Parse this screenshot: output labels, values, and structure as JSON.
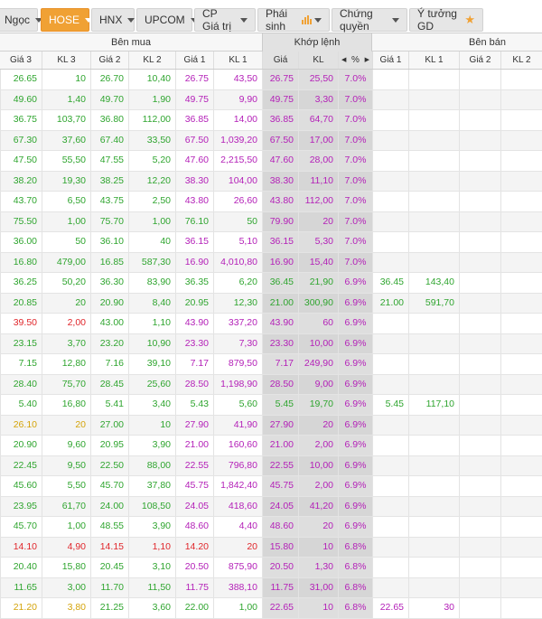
{
  "tabs": [
    {
      "label": "Ngọc",
      "active": false,
      "icon": "chevron-down-icon"
    },
    {
      "label": "HOSE",
      "active": true,
      "icon": "chevron-down-icon"
    },
    {
      "label": "HNX",
      "active": false,
      "icon": "chevron-down-icon"
    },
    {
      "label": "UPCOM",
      "active": false,
      "icon": "chevron-down-icon"
    },
    {
      "label": "CP Giá trị",
      "active": false,
      "icon": "chevron-down-icon"
    },
    {
      "label": "Phái sinh",
      "active": false,
      "icon": "bar-chart-icon"
    },
    {
      "label": "Chứng quyền",
      "active": false,
      "icon": "chevron-down-icon"
    },
    {
      "label": "Ý tưởng GD",
      "active": false,
      "icon": "star-icon"
    }
  ],
  "groups": {
    "ben_mua": "Bên mua",
    "khop_lenh": "Khớp lệnh",
    "ben_ban": "Bên bán"
  },
  "columns": [
    "Giá 3",
    "KL 3",
    "Giá 2",
    "KL 2",
    "Giá 1",
    "KL 1",
    "Giá",
    "KL",
    "%",
    "Giá 1",
    "KL 1",
    "Giá 2",
    "KL 2"
  ],
  "colors": {
    "green": "#2fa52f",
    "purple": "#b421b8",
    "red": "#e0262b",
    "yellow": "#d4a40a",
    "accent": "#f0a134"
  },
  "rows": [
    {
      "g3": "26.65",
      "kl3": "10",
      "g2": "26.70",
      "kl2": "10,40",
      "g1": "26.75",
      "kl1": "43,50",
      "gia": "26.75",
      "kl": "25,50",
      "pct": "7.0%",
      "s_g1": "",
      "s_kl1": "",
      "s_g2": "",
      "s_kl2": "",
      "c3": "green",
      "c2": "green",
      "c1": "purple",
      "cg": "purple"
    },
    {
      "g3": "49.60",
      "kl3": "1,40",
      "g2": "49.70",
      "kl2": "1,90",
      "g1": "49.75",
      "kl1": "9,90",
      "gia": "49.75",
      "kl": "3,30",
      "pct": "7.0%",
      "s_g1": "",
      "s_kl1": "",
      "s_g2": "",
      "s_kl2": "",
      "c3": "green",
      "c2": "green",
      "c1": "purple",
      "cg": "purple"
    },
    {
      "g3": "36.75",
      "kl3": "103,70",
      "g2": "36.80",
      "kl2": "112,00",
      "g1": "36.85",
      "kl1": "14,00",
      "gia": "36.85",
      "kl": "64,70",
      "pct": "7.0%",
      "s_g1": "",
      "s_kl1": "",
      "s_g2": "",
      "s_kl2": "",
      "c3": "green",
      "c2": "green",
      "c1": "purple",
      "cg": "purple"
    },
    {
      "g3": "67.30",
      "kl3": "37,60",
      "g2": "67.40",
      "kl2": "33,50",
      "g1": "67.50",
      "kl1": "1,039,20",
      "gia": "67.50",
      "kl": "17,00",
      "pct": "7.0%",
      "s_g1": "",
      "s_kl1": "",
      "s_g2": "",
      "s_kl2": "",
      "c3": "green",
      "c2": "green",
      "c1": "purple",
      "cg": "purple"
    },
    {
      "g3": "47.50",
      "kl3": "55,50",
      "g2": "47.55",
      "kl2": "5,20",
      "g1": "47.60",
      "kl1": "2,215,50",
      "gia": "47.60",
      "kl": "28,00",
      "pct": "7.0%",
      "s_g1": "",
      "s_kl1": "",
      "s_g2": "",
      "s_kl2": "",
      "c3": "green",
      "c2": "green",
      "c1": "purple",
      "cg": "purple"
    },
    {
      "g3": "38.20",
      "kl3": "19,30",
      "g2": "38.25",
      "kl2": "12,20",
      "g1": "38.30",
      "kl1": "104,00",
      "gia": "38.30",
      "kl": "11,10",
      "pct": "7.0%",
      "s_g1": "",
      "s_kl1": "",
      "s_g2": "",
      "s_kl2": "",
      "c3": "green",
      "c2": "green",
      "c1": "purple",
      "cg": "purple"
    },
    {
      "g3": "43.70",
      "kl3": "6,50",
      "g2": "43.75",
      "kl2": "2,50",
      "g1": "43.80",
      "kl1": "26,60",
      "gia": "43.80",
      "kl": "112,00",
      "pct": "7.0%",
      "s_g1": "",
      "s_kl1": "",
      "s_g2": "",
      "s_kl2": "",
      "c3": "green",
      "c2": "green",
      "c1": "purple",
      "cg": "purple"
    },
    {
      "g3": "75.50",
      "kl3": "1,00",
      "g2": "75.70",
      "kl2": "1,00",
      "g1": "76.10",
      "kl1": "50",
      "gia": "79.90",
      "kl": "20",
      "pct": "7.0%",
      "s_g1": "",
      "s_kl1": "",
      "s_g2": "",
      "s_kl2": "",
      "c3": "green",
      "c2": "green",
      "c1": "green",
      "cg": "purple"
    },
    {
      "g3": "36.00",
      "kl3": "50",
      "g2": "36.10",
      "kl2": "40",
      "g1": "36.15",
      "kl1": "5,10",
      "gia": "36.15",
      "kl": "5,30",
      "pct": "7.0%",
      "s_g1": "",
      "s_kl1": "",
      "s_g2": "",
      "s_kl2": "",
      "c3": "green",
      "c2": "green",
      "c1": "purple",
      "cg": "purple"
    },
    {
      "g3": "16.80",
      "kl3": "479,00",
      "g2": "16.85",
      "kl2": "587,30",
      "g1": "16.90",
      "kl1": "4,010,80",
      "gia": "16.90",
      "kl": "15,40",
      "pct": "7.0%",
      "s_g1": "",
      "s_kl1": "",
      "s_g2": "",
      "s_kl2": "",
      "c3": "green",
      "c2": "green",
      "c1": "purple",
      "cg": "purple"
    },
    {
      "g3": "36.25",
      "kl3": "50,20",
      "g2": "36.30",
      "kl2": "83,90",
      "g1": "36.35",
      "kl1": "6,20",
      "gia": "36.45",
      "kl": "21,90",
      "pct": "6.9%",
      "s_g1": "36.45",
      "s_kl1": "143,40",
      "s_g2": "",
      "s_kl2": "",
      "c3": "green",
      "c2": "green",
      "c1": "green",
      "cg": "green"
    },
    {
      "g3": "20.85",
      "kl3": "20",
      "g2": "20.90",
      "kl2": "8,40",
      "g1": "20.95",
      "kl1": "12,30",
      "gia": "21.00",
      "kl": "300,90",
      "pct": "6.9%",
      "s_g1": "21.00",
      "s_kl1": "591,70",
      "s_g2": "",
      "s_kl2": "",
      "c3": "green",
      "c2": "green",
      "c1": "green",
      "cg": "green"
    },
    {
      "g3": "39.50",
      "kl3": "2,00",
      "g2": "43.00",
      "kl2": "1,10",
      "g1": "43.90",
      "kl1": "337,20",
      "gia": "43.90",
      "kl": "60",
      "pct": "6.9%",
      "s_g1": "",
      "s_kl1": "",
      "s_g2": "",
      "s_kl2": "",
      "c3": "red",
      "c2": "green",
      "c1": "purple",
      "cg": "purple"
    },
    {
      "g3": "23.15",
      "kl3": "3,70",
      "g2": "23.20",
      "kl2": "10,90",
      "g1": "23.30",
      "kl1": "7,30",
      "gia": "23.30",
      "kl": "10,00",
      "pct": "6.9%",
      "s_g1": "",
      "s_kl1": "",
      "s_g2": "",
      "s_kl2": "",
      "c3": "green",
      "c2": "green",
      "c1": "purple",
      "cg": "purple"
    },
    {
      "g3": "7.15",
      "kl3": "12,80",
      "g2": "7.16",
      "kl2": "39,10",
      "g1": "7.17",
      "kl1": "879,50",
      "gia": "7.17",
      "kl": "249,90",
      "pct": "6.9%",
      "s_g1": "",
      "s_kl1": "",
      "s_g2": "",
      "s_kl2": "",
      "c3": "green",
      "c2": "green",
      "c1": "purple",
      "cg": "purple"
    },
    {
      "g3": "28.40",
      "kl3": "75,70",
      "g2": "28.45",
      "kl2": "25,60",
      "g1": "28.50",
      "kl1": "1,198,90",
      "gia": "28.50",
      "kl": "9,00",
      "pct": "6.9%",
      "s_g1": "",
      "s_kl1": "",
      "s_g2": "",
      "s_kl2": "",
      "c3": "green",
      "c2": "green",
      "c1": "purple",
      "cg": "purple"
    },
    {
      "g3": "5.40",
      "kl3": "16,80",
      "g2": "5.41",
      "kl2": "3,40",
      "g1": "5.43",
      "kl1": "5,60",
      "gia": "5.45",
      "kl": "19,70",
      "pct": "6.9%",
      "s_g1": "5.45",
      "s_kl1": "117,10",
      "s_g2": "",
      "s_kl2": "",
      "c3": "green",
      "c2": "green",
      "c1": "green",
      "cg": "green"
    },
    {
      "g3": "26.10",
      "kl3": "20",
      "g2": "27.00",
      "kl2": "10",
      "g1": "27.90",
      "kl1": "41,90",
      "gia": "27.90",
      "kl": "20",
      "pct": "6.9%",
      "s_g1": "",
      "s_kl1": "",
      "s_g2": "",
      "s_kl2": "",
      "c3": "yellow",
      "c2": "green",
      "c1": "purple",
      "cg": "purple"
    },
    {
      "g3": "20.90",
      "kl3": "9,60",
      "g2": "20.95",
      "kl2": "3,90",
      "g1": "21.00",
      "kl1": "160,60",
      "gia": "21.00",
      "kl": "2,00",
      "pct": "6.9%",
      "s_g1": "",
      "s_kl1": "",
      "s_g2": "",
      "s_kl2": "",
      "c3": "green",
      "c2": "green",
      "c1": "purple",
      "cg": "purple"
    },
    {
      "g3": "22.45",
      "kl3": "9,50",
      "g2": "22.50",
      "kl2": "88,00",
      "g1": "22.55",
      "kl1": "796,80",
      "gia": "22.55",
      "kl": "10,00",
      "pct": "6.9%",
      "s_g1": "",
      "s_kl1": "",
      "s_g2": "",
      "s_kl2": "",
      "c3": "green",
      "c2": "green",
      "c1": "purple",
      "cg": "purple"
    },
    {
      "g3": "45.60",
      "kl3": "5,50",
      "g2": "45.70",
      "kl2": "37,80",
      "g1": "45.75",
      "kl1": "1,842,40",
      "gia": "45.75",
      "kl": "2,00",
      "pct": "6.9%",
      "s_g1": "",
      "s_kl1": "",
      "s_g2": "",
      "s_kl2": "",
      "c3": "green",
      "c2": "green",
      "c1": "purple",
      "cg": "purple"
    },
    {
      "g3": "23.95",
      "kl3": "61,70",
      "g2": "24.00",
      "kl2": "108,50",
      "g1": "24.05",
      "kl1": "418,60",
      "gia": "24.05",
      "kl": "41,20",
      "pct": "6.9%",
      "s_g1": "",
      "s_kl1": "",
      "s_g2": "",
      "s_kl2": "",
      "c3": "green",
      "c2": "green",
      "c1": "purple",
      "cg": "purple"
    },
    {
      "g3": "45.70",
      "kl3": "1,00",
      "g2": "48.55",
      "kl2": "3,90",
      "g1": "48.60",
      "kl1": "4,40",
      "gia": "48.60",
      "kl": "20",
      "pct": "6.9%",
      "s_g1": "",
      "s_kl1": "",
      "s_g2": "",
      "s_kl2": "",
      "c3": "green",
      "c2": "green",
      "c1": "purple",
      "cg": "purple"
    },
    {
      "g3": "14.10",
      "kl3": "4,90",
      "g2": "14.15",
      "kl2": "1,10",
      "g1": "14.20",
      "kl1": "20",
      "gia": "15.80",
      "kl": "10",
      "pct": "6.8%",
      "s_g1": "",
      "s_kl1": "",
      "s_g2": "",
      "s_kl2": "",
      "c3": "red",
      "c2": "red",
      "c1": "red",
      "cg": "purple"
    },
    {
      "g3": "20.40",
      "kl3": "15,80",
      "g2": "20.45",
      "kl2": "3,10",
      "g1": "20.50",
      "kl1": "875,90",
      "gia": "20.50",
      "kl": "1,30",
      "pct": "6.8%",
      "s_g1": "",
      "s_kl1": "",
      "s_g2": "",
      "s_kl2": "",
      "c3": "green",
      "c2": "green",
      "c1": "purple",
      "cg": "purple"
    },
    {
      "g3": "11.65",
      "kl3": "3,00",
      "g2": "11.70",
      "kl2": "11,50",
      "g1": "11.75",
      "kl1": "388,10",
      "gia": "11.75",
      "kl": "31,00",
      "pct": "6.8%",
      "s_g1": "",
      "s_kl1": "",
      "s_g2": "",
      "s_kl2": "",
      "c3": "green",
      "c2": "green",
      "c1": "purple",
      "cg": "purple"
    },
    {
      "g3": "21.20",
      "kl3": "3,80",
      "g2": "21.25",
      "kl2": "3,60",
      "g1": "22.00",
      "kl1": "1,00",
      "gia": "22.65",
      "kl": "10",
      "pct": "6.8%",
      "s_g1": "22.65",
      "s_kl1": "30",
      "s_g2": "",
      "s_kl2": "",
      "c3": "yellow",
      "c2": "green",
      "c1": "green",
      "cg": "purple"
    }
  ]
}
